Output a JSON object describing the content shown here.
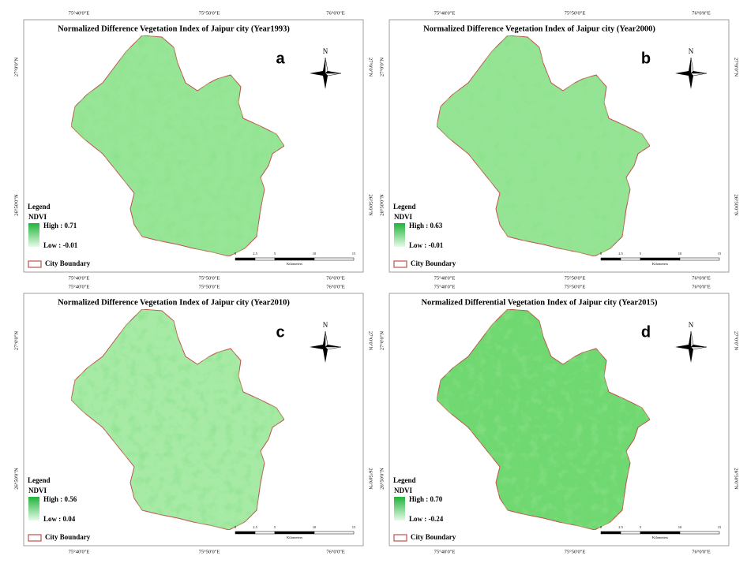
{
  "panels": [
    {
      "title": "Normalized Difference Vegetation Index of Jaipur city (Year1993)",
      "label": "a",
      "high": "High : 0.71",
      "low": "Low : -0.01"
    },
    {
      "title": "Normalized Difference Vegetation Index of Jaipur city (Year2000)",
      "label": "b",
      "high": "High : 0.63",
      "low": "Low : -0.01"
    },
    {
      "title": "Normalized Difference Vegetation Index of Jaipur city (Year2010)",
      "label": "c",
      "high": "High : 0.56",
      "low": "Low : 0.04"
    },
    {
      "title": "Normalized Differential Vegetation Index of Jaipur city (Year2015)",
      "label": "d",
      "high": "High : 0.70",
      "low": "Low : -0.24"
    }
  ],
  "longitudes": [
    "75°40'0\"E",
    "75°50'0\"E",
    "76°0'0\"E"
  ],
  "latitudes": [
    "27°0'0\"N",
    "26°50'0\"N"
  ],
  "legend": {
    "title": "Legend",
    "layer": "NDVI",
    "boundary": "City Boundary"
  },
  "scale": {
    "ticks": [
      "0",
      "2.5",
      "5",
      "10",
      "15"
    ],
    "unit": "Kilometers"
  },
  "north": "N"
}
